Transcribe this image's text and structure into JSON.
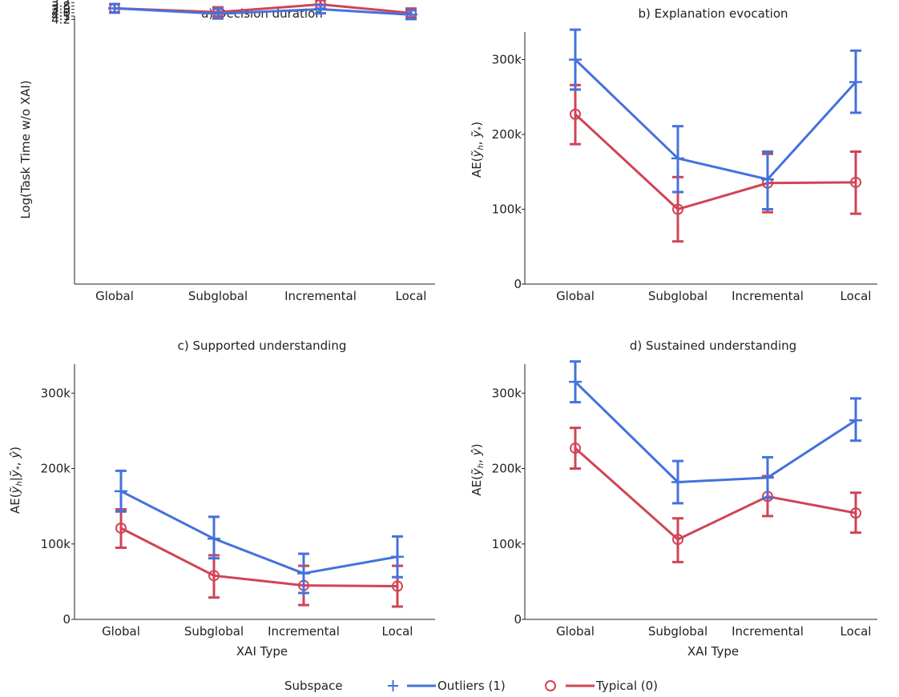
{
  "colors": {
    "outliers": "#4472dc",
    "typical": "#d04455",
    "axis": "#222222"
  },
  "legend": {
    "title": "Subspace",
    "items": [
      {
        "label": "Outliers (1)",
        "marker": "plus",
        "color": "#4472dc"
      },
      {
        "label": "Typical (0)",
        "marker": "circle",
        "color": "#d04455"
      }
    ]
  },
  "chart_data": [
    {
      "type": "line",
      "title": "a) Decision duration",
      "ylabel": "Log(Task Time w/o XAI)",
      "xlabel": "",
      "categories": [
        "Global",
        "Subglobal",
        "Incremental",
        "Local"
      ],
      "ylim": [
        3.62,
        4.2
      ],
      "yticks": [
        3.7,
        3.8,
        3.9,
        4.0,
        4.1,
        4.2
      ],
      "ytick_labels": [
        "3.7",
        "3.8",
        "3.9",
        "4.0",
        "4.1",
        "4.2"
      ],
      "series": [
        {
          "name": "Outliers (1)",
          "values": [
            3.87,
            4.03,
            3.895,
            4.058
          ],
          "err_low": [
            3.742,
            3.886,
            3.772,
            3.925
          ],
          "err_high": [
            3.998,
            4.175,
            4.018,
            4.192
          ]
        },
        {
          "name": "Typical (0)",
          "values": [
            3.87,
            3.982,
            3.752,
            4.008
          ],
          "err_low": [
            3.745,
            3.838,
            3.625,
            3.875
          ],
          "err_high": [
            3.995,
            4.121,
            3.879,
            4.141
          ]
        }
      ]
    },
    {
      "type": "line",
      "title": "b) Explanation evocation",
      "ylabel": "AE(ỹh, ỹ*)",
      "xlabel": "",
      "categories": [
        "Global",
        "Subglobal",
        "Incremental",
        "Local"
      ],
      "ylim": [
        0,
        350000
      ],
      "yticks": [
        0,
        100000,
        200000,
        300000
      ],
      "ytick_labels": [
        "0",
        "100k",
        "200k",
        "300k"
      ],
      "series": [
        {
          "name": "Outliers (1)",
          "values": [
            300000,
            168000,
            140000,
            270000
          ],
          "err_low": [
            260000,
            123000,
            100000,
            229000
          ],
          "err_high": [
            340000,
            211000,
            177000,
            312000
          ]
        },
        {
          "name": "Typical (0)",
          "values": [
            227000,
            100000,
            135000,
            136000
          ],
          "err_low": [
            187000,
            57000,
            96000,
            94000
          ],
          "err_high": [
            266000,
            143000,
            174000,
            177000
          ]
        }
      ]
    },
    {
      "type": "line",
      "title": "c) Supported understanding",
      "ylabel": "AE(ỹh|ỹ*, ŷ)",
      "xlabel": "XAI Type",
      "categories": [
        "Global",
        "Subglobal",
        "Incremental",
        "Local"
      ],
      "ylim": [
        0,
        350000
      ],
      "yticks": [
        0,
        100000,
        200000,
        300000
      ],
      "ytick_labels": [
        "0",
        "100k",
        "200k",
        "300k"
      ],
      "series": [
        {
          "name": "Outliers (1)",
          "values": [
            170000,
            107000,
            61000,
            83000
          ],
          "err_low": [
            143000,
            81000,
            35000,
            56000
          ],
          "err_high": [
            197000,
            136000,
            87000,
            110000
          ]
        },
        {
          "name": "Typical (0)",
          "values": [
            121000,
            58000,
            45000,
            44000
          ],
          "err_low": [
            95000,
            29000,
            19000,
            17000
          ],
          "err_high": [
            146000,
            85000,
            71000,
            71000
          ]
        }
      ]
    },
    {
      "type": "line",
      "title": "d) Sustained understanding",
      "ylabel": "AE(ỹh, ŷ)",
      "xlabel": "XAI Type",
      "categories": [
        "Global",
        "Subglobal",
        "Incremental",
        "Local"
      ],
      "ylim": [
        0,
        350000
      ],
      "yticks": [
        0,
        100000,
        200000,
        300000
      ],
      "ytick_labels": [
        "0",
        "100k",
        "200k",
        "300k"
      ],
      "series": [
        {
          "name": "Outliers (1)",
          "values": [
            315000,
            182000,
            188000,
            264000
          ],
          "err_low": [
            288000,
            154000,
            161000,
            237000
          ],
          "err_high": [
            342000,
            210000,
            215000,
            293000
          ]
        },
        {
          "name": "Typical (0)",
          "values": [
            227000,
            106000,
            163000,
            141000
          ],
          "err_low": [
            200000,
            76000,
            137000,
            115000
          ],
          "err_high": [
            254000,
            134000,
            190000,
            168000
          ]
        }
      ]
    }
  ]
}
